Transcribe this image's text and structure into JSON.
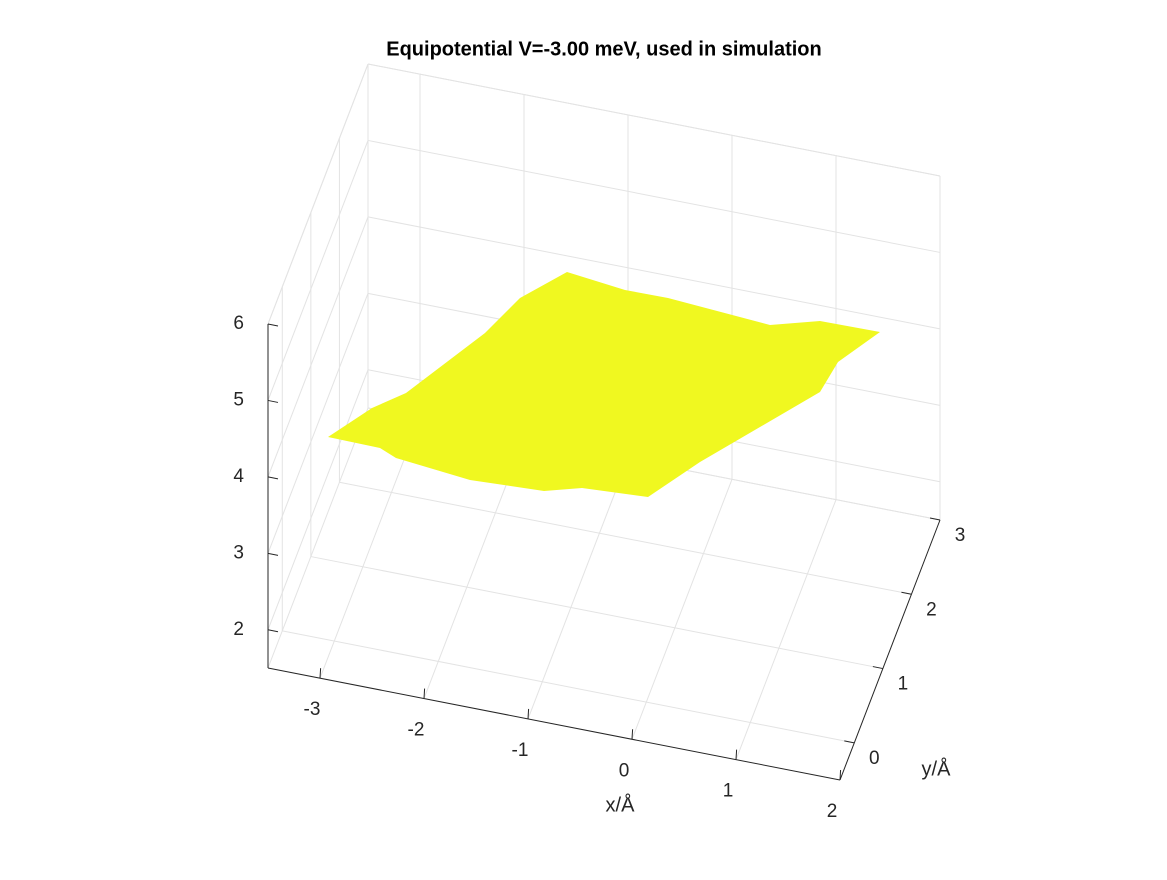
{
  "chart_data": {
    "type": "surface3d",
    "title": "Equipotential V=-3.00 meV, used in simulation",
    "x_label": "x/Å",
    "y_label": "y/Å",
    "xlim": [
      -3.5,
      2
    ],
    "xticks": [
      -3,
      -2,
      -1,
      0,
      1,
      2
    ],
    "ylim": [
      -0.5,
      3
    ],
    "yticks": [
      0,
      1,
      2,
      3
    ],
    "zlim": [
      1.5,
      6
    ],
    "zticks": [
      2,
      3,
      4,
      5,
      6
    ],
    "grid": true,
    "color": "#f0f820"
  }
}
